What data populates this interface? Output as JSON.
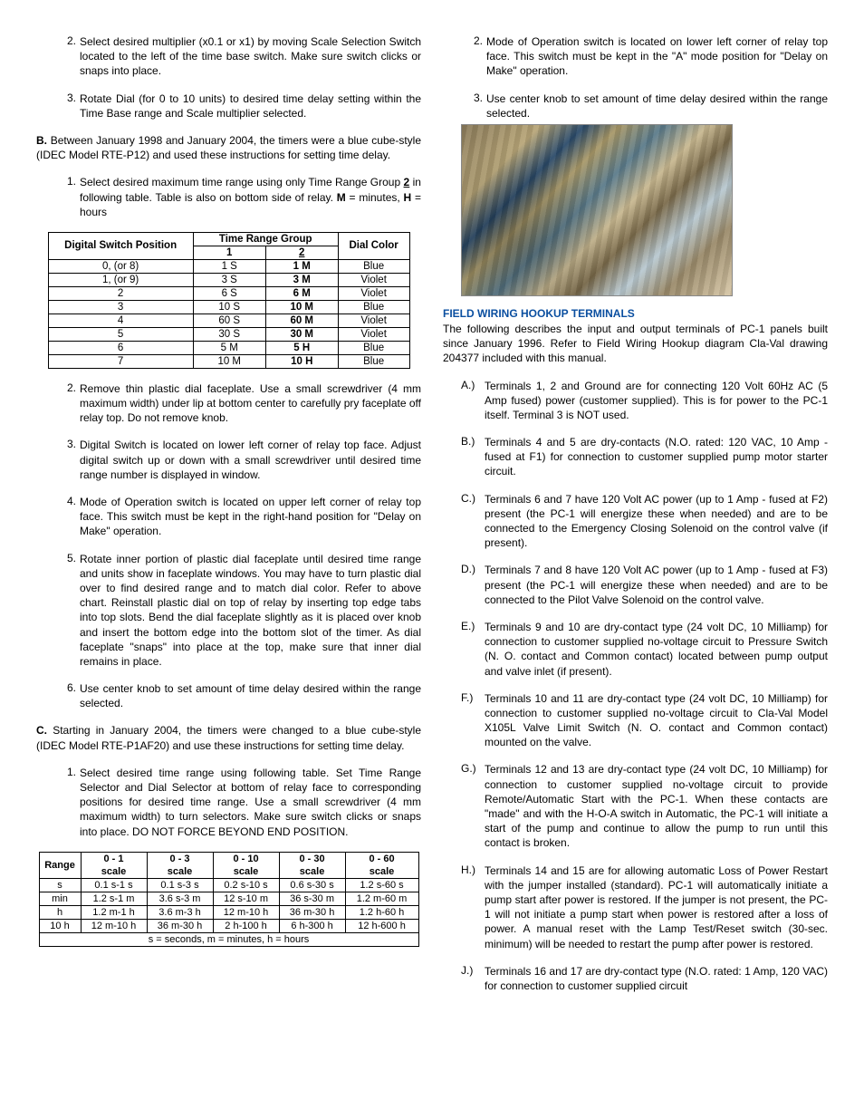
{
  "leftCol": {
    "itemsA": [
      {
        "n": "2.",
        "t": "Select desired multiplier (x0.1 or x1) by moving Scale Selection Switch located to the left of the time base switch. Make sure switch clicks or snaps into place."
      },
      {
        "n": "3.",
        "t": "Rotate Dial (for 0 to 10 units) to desired time delay setting within the Time Base range and Scale multiplier selected."
      }
    ],
    "paraB_prefix": "B.",
    "paraB": "Between January 1998 and January 2004, the timers were a blue cube-style (IDEC Model RTE-P12) and used these instructions for setting time delay.",
    "itemB1": {
      "n": "1.",
      "pre": "Select desired maximum time range using only Time Range Group ",
      "grp": "2",
      "post": " in following table.  Table is also on bottom side of relay.  ",
      "mLabel": "M",
      "mEq": " = minutes, ",
      "hLabel": "H",
      "hEq": " = hours"
    },
    "table1": {
      "h_dsp": "Digital Switch Position",
      "h_trg": "Time Range Group",
      "h_1": "1",
      "h_2": "2",
      "h_dc": "Dial Color",
      "rows": [
        {
          "p": "0, (or 8)",
          "c1": "1 S",
          "c2": "1 M",
          "dc": "Blue"
        },
        {
          "p": "1, (or 9)",
          "c1": "3 S",
          "c2": "3 M",
          "dc": "Violet"
        },
        {
          "p": "2",
          "c1": "6 S",
          "c2": "6 M",
          "dc": "Violet"
        },
        {
          "p": "3",
          "c1": "10 S",
          "c2": "10 M",
          "dc": "Blue"
        },
        {
          "p": "4",
          "c1": "60 S",
          "c2": "60 M",
          "dc": "Violet"
        },
        {
          "p": "5",
          "c1": "30 S",
          "c2": "30 M",
          "dc": "Violet"
        },
        {
          "p": "6",
          "c1": "5 M",
          "c2": "5 H",
          "dc": "Blue"
        },
        {
          "p": "7",
          "c1": "10 M",
          "c2": "10 H",
          "dc": "Blue"
        }
      ]
    },
    "itemsB_rest": [
      {
        "n": "2.",
        "t": "Remove thin plastic dial faceplate.  Use a small screwdriver (4 mm maximum width) under lip at bottom center to carefully pry faceplate off relay top.  Do not remove knob."
      },
      {
        "n": "3.",
        "t": "Digital Switch is located on lower left corner of relay top face. Adjust digital switch up or down with a small screwdriver until desired time range number is displayed in window."
      },
      {
        "n": "4.",
        "t": "Mode of Operation switch is located on upper left corner of relay top face.  This switch must be kept in the right-hand position for \"Delay on Make\" operation."
      },
      {
        "n": "5.",
        "t": "Rotate inner portion of plastic dial faceplate until desired time range and units show in faceplate windows.  You may have to turn plastic dial over to find desired range and to match dial color.  Refer to above chart.  Reinstall plastic dial on top of relay by inserting top edge tabs into top slots.  Bend the dial faceplate slightly as it is placed over knob and insert the bottom edge into the bottom slot of the timer.  As dial faceplate \"snaps\" into place at the top, make sure that inner dial remains in place."
      },
      {
        "n": "6.",
        "t": "Use center knob to set amount of time delay desired within the range selected."
      }
    ],
    "paraC_prefix": "C.",
    "paraC": "Starting in January 2004, the timers were changed to a blue cube-style (IDEC Model RTE-P1AF20) and use these instructions for setting time delay.",
    "itemC1": {
      "n": "1.",
      "t": "Select desired time range using following table.  Set Time Range Selector and Dial Selector at bottom of relay face to corresponding positions for desired time range.  Use a small screwdriver (4 mm maximum width) to turn selectors.  Make sure switch clicks or snaps into place.  DO NOT FORCE BEYOND END POSITION."
    },
    "table2": {
      "h_range": "Range",
      "cols": [
        {
          "top": "0 - 1",
          "bot": "scale"
        },
        {
          "top": "0 - 3",
          "bot": "scale"
        },
        {
          "top": "0 - 10",
          "bot": "scale"
        },
        {
          "top": "0 - 30",
          "bot": "scale"
        },
        {
          "top": "0 - 60",
          "bot": "scale"
        }
      ],
      "rows": [
        {
          "r": "s",
          "c": [
            "0.1 s-1 s",
            "0.1 s-3 s",
            "0.2 s-10 s",
            "0.6 s-30 s",
            "1.2 s-60 s"
          ]
        },
        {
          "r": "min",
          "c": [
            "1.2 s-1 m",
            "3.6 s-3 m",
            "12 s-10 m",
            "36 s-30 m",
            "1.2 m-60 m"
          ]
        },
        {
          "r": "h",
          "c": [
            "1.2 m-1 h",
            "3.6 m-3 h",
            "12 m-10 h",
            "36 m-30 h",
            "1.2 h-60 h"
          ]
        },
        {
          "r": "10 h",
          "c": [
            "12 m-10 h",
            "36 m-30 h",
            "2 h-100 h",
            "6 h-300 h",
            "12 h-600 h"
          ]
        }
      ],
      "footer": "s = seconds, m = minutes, h = hours"
    }
  },
  "rightCol": {
    "itemsTop": [
      {
        "n": "2.",
        "t": "Mode of Operation switch is located on lower left corner of relay top face.  This switch must be kept in the \"A\" mode position for \"Delay on Make\" operation."
      },
      {
        "n": "3.",
        "t": "Use center knob to set amount of time delay desired within the range selected."
      }
    ],
    "heading": "FIELD WIRING HOOKUP TERMINALS",
    "intro": "The following describes the input and output terminals of PC-1 panels built since January 1996.  Refer to Field Wiring Hookup diagram Cla-Val drawing 204377 included with this manual.",
    "lettered": [
      {
        "l": "A.)",
        "t": "Terminals 1, 2 and Ground are for connecting 120 Volt 60Hz AC (5 Amp fused) power (customer supplied).  This is for power to the PC-1 itself.  Terminal 3 is NOT used."
      },
      {
        "l": "B.)",
        "t": "Terminals 4 and 5 are dry-contacts (N.O. rated: 120 VAC, 10 Amp - fused at F1) for connection to customer supplied pump motor starter circuit."
      },
      {
        "l": "C.)",
        "t": "Terminals 6 and 7 have 120 Volt AC power (up to 1 Amp - fused at F2) present (the PC-1 will energize these when needed) and are to be connected to the Emergency Closing Solenoid on the control valve (if present)."
      },
      {
        "l": "D.)",
        "t": "Terminals 7 and 8 have 120 Volt AC power (up to 1 Amp - fused at F3) present (the PC-1 will energize these when needed) and are to be connected to the Pilot Valve Solenoid on the control valve."
      },
      {
        "l": "E.)",
        "t": "Terminals 9 and 10 are dry-contact type (24 volt DC, 10 Milliamp) for connection to customer supplied no-voltage circuit to Pressure Switch (N. O. contact and Common contact) located between pump output and valve inlet (if present)."
      },
      {
        "l": "F.)",
        "t": "Terminals 10 and 11 are dry-contact type (24 volt DC, 10 Milliamp) for connection to customer supplied no-voltage circuit to Cla-Val Model X105L Valve Limit Switch (N. O. contact and Common contact) mounted on the valve."
      },
      {
        "l": "G.)",
        "t": "Terminals 12 and 13 are dry-contact type (24 volt DC, 10 Milliamp) for connection to customer supplied no-voltage circuit to provide Remote/Automatic Start with the PC-1.  When these contacts are \"made\" and with the H-O-A switch in Automatic, the PC-1 will initiate a start of the pump and continue to allow the pump to run until this contact is broken."
      },
      {
        "l": "H.)",
        "t": "Terminals 14 and 15 are for allowing automatic Loss of Power Restart with the jumper installed (standard).  PC-1 will automatically initiate a pump start after power is restored.  If the jumper is not present, the PC-1 will not initiate a pump start when power is restored after a loss of power.  A manual reset with the Lamp Test/Reset switch (30-sec. minimum) will be needed to restart the pump after power is restored."
      },
      {
        "l": "J.)",
        "t": "Terminals 16 and 17 are dry-contact type (N.O. rated: 1 Amp, 120 VAC) for connection to customer supplied circuit"
      }
    ]
  }
}
